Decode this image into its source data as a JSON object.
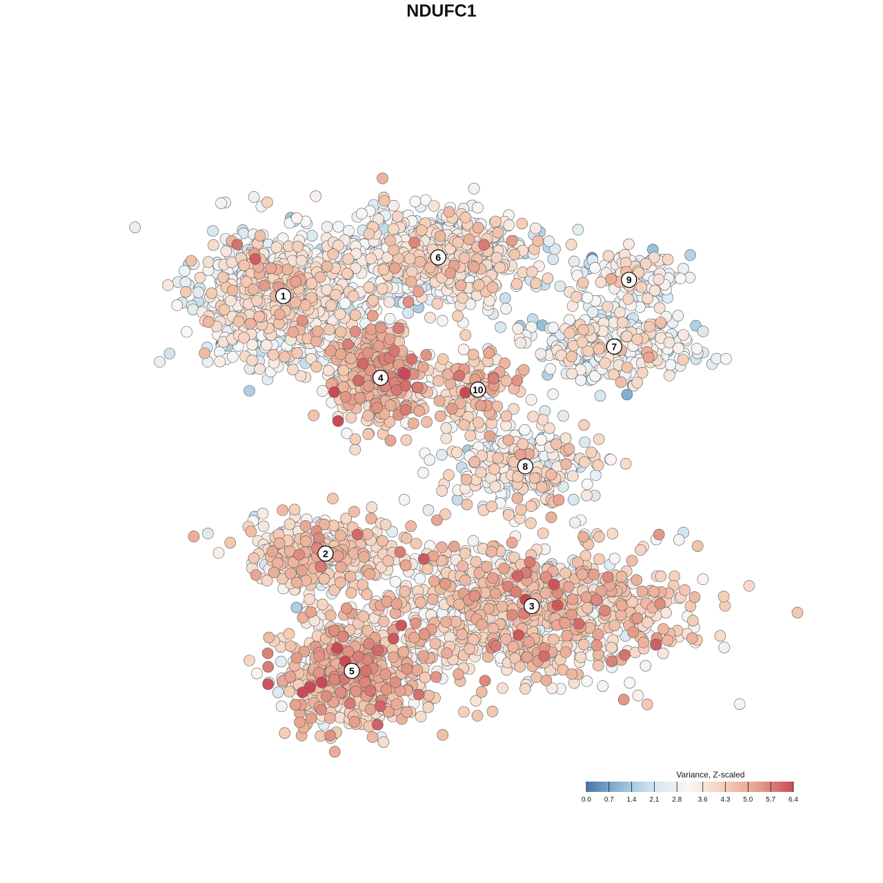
{
  "chart_data": {
    "type": "scatter",
    "title": "NDUFC1",
    "xlabel": "",
    "ylabel": "",
    "color_scale": {
      "title": "Variance, Z-scaled",
      "min": 0.0,
      "max": 6.4,
      "tick_values": [
        0.0,
        0.7,
        1.4,
        2.1,
        2.8,
        3.6,
        4.3,
        5.0,
        5.7,
        6.4
      ],
      "tick_labels": [
        "0.0",
        "0.7",
        "1.4",
        "2.1",
        "2.8",
        "3.6",
        "4.3",
        "5.0",
        "5.7",
        "6.4"
      ],
      "colors": [
        "#4a76a8",
        "#8fbbd9",
        "#d6e6f0",
        "#f7f7f7",
        "#f5cdb6",
        "#e59e8a",
        "#c94a56"
      ]
    },
    "legend_placement": "bottom-right",
    "grid": false,
    "axes_visible": false,
    "clusters": [
      {
        "label": "1",
        "x": 0.227,
        "y": 0.731,
        "mean": 3.1,
        "sx": 0.06,
        "sy": 0.05,
        "n": 900
      },
      {
        "label": "6",
        "x": 0.469,
        "y": 0.793,
        "mean": 3.2,
        "sx": 0.075,
        "sy": 0.035,
        "n": 700
      },
      {
        "label": "9",
        "x": 0.767,
        "y": 0.757,
        "mean": 2.9,
        "sx": 0.04,
        "sy": 0.02,
        "n": 160
      },
      {
        "label": "7",
        "x": 0.744,
        "y": 0.65,
        "mean": 2.9,
        "sx": 0.06,
        "sy": 0.025,
        "n": 330
      },
      {
        "label": "4",
        "x": 0.379,
        "y": 0.6,
        "mean": 4.4,
        "sx": 0.04,
        "sy": 0.04,
        "n": 330
      },
      {
        "label": "10",
        "x": 0.531,
        "y": 0.581,
        "mean": 4.0,
        "sx": 0.03,
        "sy": 0.035,
        "n": 120
      },
      {
        "label": "8",
        "x": 0.605,
        "y": 0.458,
        "mean": 3.2,
        "sx": 0.06,
        "sy": 0.035,
        "n": 280
      },
      {
        "label": "2",
        "x": 0.293,
        "y": 0.318,
        "mean": 3.7,
        "sx": 0.06,
        "sy": 0.03,
        "n": 380
      },
      {
        "label": "3",
        "x": 0.615,
        "y": 0.234,
        "mean": 4.0,
        "sx": 0.12,
        "sy": 0.055,
        "n": 850
      },
      {
        "label": "5",
        "x": 0.334,
        "y": 0.13,
        "mean": 4.3,
        "sx": 0.06,
        "sy": 0.045,
        "n": 550
      }
    ]
  }
}
